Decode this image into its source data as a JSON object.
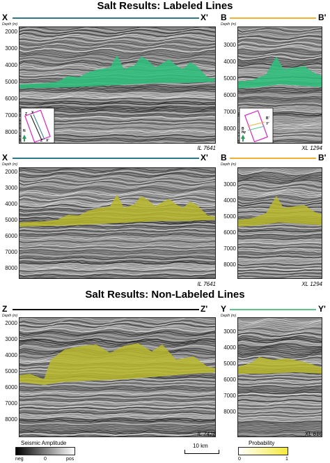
{
  "titles": {
    "labeled": "Salt Results: Labeled Lines",
    "non_labeled": "Salt Results: Non-Labeled Lines"
  },
  "depth_unit": "Depth (m)",
  "ticks_tall": [
    "2000",
    "3000",
    "4000",
    "5000",
    "6000",
    "7000",
    "8000"
  ],
  "ticks_short": [
    "3000",
    "4000",
    "5000",
    "6000",
    "7000",
    "8000"
  ],
  "ticks_row3_left": [
    "2000",
    "3000",
    "4000",
    "5000",
    "6000",
    "7000",
    "8000"
  ],
  "ticks_row3_right": [
    "3000",
    "4000",
    "5000",
    "6000",
    "7000",
    "8000"
  ],
  "rows": [
    {
      "left": {
        "a": "X",
        "b": "X'",
        "caption": "IL 7641",
        "line_color": "#2a7a8c",
        "fill": "#2fbf7c"
      },
      "right": {
        "a": "B",
        "b": "B'",
        "caption": "XL 1294",
        "line_color": "#f4b030",
        "fill": "#2fbf7c"
      }
    },
    {
      "left": {
        "a": "X",
        "b": "X'",
        "caption": "IL 7641",
        "line_color": "#2a7a8c",
        "fill": "#b9b82c"
      },
      "right": {
        "a": "B",
        "b": "B'",
        "caption": "XL 1294",
        "line_color": "#f4b030",
        "fill": "#b9b82c"
      }
    },
    {
      "left": {
        "a": "Z",
        "b": "Z'",
        "caption": "IL 7428",
        "line_color": "#111111",
        "fill": "#b9b82c"
      },
      "right": {
        "a": "Y",
        "b": "Y'",
        "caption": "XL 610",
        "line_color": "#5bc58a",
        "fill": "#b9b82c"
      }
    }
  ],
  "inset_left": {
    "labels": [
      "Z",
      "X",
      "X'",
      "Z'",
      "N"
    ]
  },
  "inset_right": {
    "labels": [
      "B",
      "B'",
      "Y",
      "Y'",
      "N"
    ]
  },
  "legend": {
    "seismic": {
      "title": "Seismic Amplitude",
      "ticks": [
        "neg",
        "0",
        "pos"
      ]
    },
    "probability": {
      "title": "Probability",
      "ticks": [
        "0",
        "1"
      ]
    },
    "scale": "10 km"
  },
  "colors": {
    "salt_labeled": "#2fbf7c",
    "salt_pred": "#b9b82c",
    "x_line": "#2a7a8c",
    "b_line": "#f4b030",
    "y_line": "#5bc58a",
    "inset_magenta": "#e020c8"
  }
}
